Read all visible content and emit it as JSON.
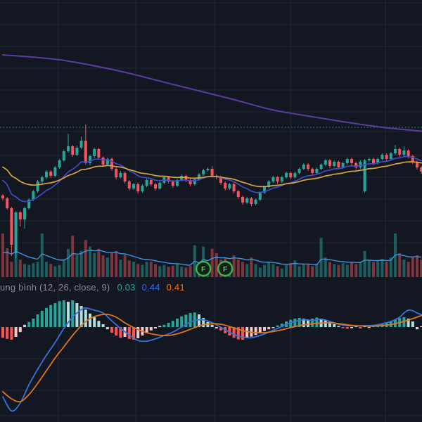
{
  "indicator_label": {
    "name": "ung bình (12, 26, close, 9)",
    "hist_value": "0.03",
    "macd_value": "0.44",
    "signal_value": "0.41"
  },
  "event_markers": [
    {
      "label": "F",
      "candle_index": 46
    },
    {
      "label": "F",
      "candle_index": 51
    }
  ],
  "colors": {
    "background": "#131722",
    "grid": "rgba(54,60,78,0.45)",
    "candle_up": "#26a69a",
    "candle_down": "#f4555f",
    "volume_up": "rgba(38,166,154,0.5)",
    "volume_down": "rgba(244,85,95,0.48)",
    "ma_fast": "#3e4cc7",
    "ma_slow": "#d9a441",
    "ma_long": "#5a3e9e",
    "volume_ma": "#3d94dc",
    "macd_line": "#3674d9",
    "macd_signal": "#e0751f",
    "hist_up": "#26a69a",
    "hist_up_fade": "#b2dfdb",
    "hist_down": "#ff5252",
    "hist_down_fade": "#f8c3c7",
    "dotted_baseline": "#2d8077",
    "marker_ring": "#3cb54a",
    "marker_glyph": "#4fd35f",
    "marker_fill": "#13201a",
    "label_text": "#868b98"
  },
  "chart_data": {
    "type": "candlestick",
    "units": "relative (no price axis visible in crop)",
    "candles_ohlc": [
      [
        12.2,
        12.4,
        11.5,
        11.8
      ],
      [
        11.8,
        12.0,
        10.2,
        10.4
      ],
      [
        10.4,
        10.6,
        3.6,
        5.2
      ],
      [
        4.0,
        10.0,
        3.3,
        9.8
      ],
      [
        9.8,
        10.0,
        7.8,
        8.8
      ],
      [
        8.8,
        10.6,
        7.5,
        10.4
      ],
      [
        10.4,
        11.8,
        10.2,
        11.6
      ],
      [
        11.6,
        13.0,
        11.4,
        12.8
      ],
      [
        12.8,
        14.4,
        12.6,
        14.2
      ],
      [
        14.2,
        15.0,
        13.8,
        14.8
      ],
      [
        14.8,
        15.8,
        14.5,
        15.6
      ],
      [
        15.6,
        15.8,
        14.7,
        15.0
      ],
      [
        15.0,
        16.4,
        14.8,
        16.2
      ],
      [
        16.2,
        17.4,
        16.0,
        17.2
      ],
      [
        17.2,
        18.7,
        17.0,
        18.5
      ],
      [
        18.5,
        21.0,
        18.3,
        19.2
      ],
      [
        19.2,
        19.4,
        17.7,
        18.0
      ],
      [
        18.0,
        19.3,
        17.8,
        19.0
      ],
      [
        19.0,
        20.6,
        18.8,
        20.0
      ],
      [
        20.0,
        22.3,
        16.6,
        16.8
      ],
      [
        16.8,
        18.0,
        16.5,
        17.8
      ],
      [
        17.8,
        19.0,
        17.5,
        18.8
      ],
      [
        18.8,
        19.0,
        17.3,
        17.6
      ],
      [
        17.6,
        17.8,
        16.3,
        16.6
      ],
      [
        16.6,
        17.6,
        16.4,
        17.4
      ],
      [
        17.4,
        17.6,
        15.7,
        16.0
      ],
      [
        16.0,
        16.2,
        14.5,
        14.8
      ],
      [
        14.8,
        15.7,
        14.6,
        15.4
      ],
      [
        15.4,
        15.6,
        13.9,
        14.2
      ],
      [
        14.2,
        14.4,
        12.9,
        13.2
      ],
      [
        13.2,
        14.0,
        13.0,
        13.8
      ],
      [
        13.8,
        14.0,
        12.5,
        12.8
      ],
      [
        12.8,
        13.8,
        12.6,
        13.6
      ],
      [
        13.6,
        14.6,
        13.4,
        14.4
      ],
      [
        14.4,
        14.6,
        13.5,
        13.8
      ],
      [
        13.8,
        14.0,
        12.9,
        13.2
      ],
      [
        13.2,
        14.2,
        13.0,
        14.0
      ],
      [
        14.0,
        15.0,
        13.8,
        14.8
      ],
      [
        14.8,
        15.0,
        13.9,
        14.2
      ],
      [
        14.2,
        14.4,
        13.3,
        13.6
      ],
      [
        13.6,
        14.6,
        13.4,
        14.4
      ],
      [
        14.4,
        15.2,
        14.2,
        15.0
      ],
      [
        15.0,
        15.2,
        14.1,
        14.4
      ],
      [
        14.4,
        14.6,
        13.5,
        13.8
      ],
      [
        13.8,
        14.7,
        13.6,
        14.5
      ],
      [
        14.5,
        15.4,
        14.3,
        15.2
      ],
      [
        15.2,
        16.0,
        15.0,
        15.8
      ],
      [
        15.8,
        16.2,
        15.6,
        16.0
      ],
      [
        16.0,
        16.4,
        14.8,
        15.0
      ],
      [
        15.0,
        15.2,
        14.5,
        14.8
      ],
      [
        14.8,
        15.0,
        13.7,
        14.0
      ],
      [
        14.0,
        14.2,
        12.9,
        13.2
      ],
      [
        13.2,
        14.0,
        13.0,
        13.8
      ],
      [
        13.8,
        14.0,
        12.5,
        12.8
      ],
      [
        12.8,
        13.0,
        11.7,
        12.0
      ],
      [
        12.0,
        12.2,
        10.9,
        11.2
      ],
      [
        11.2,
        12.0,
        11.0,
        11.8
      ],
      [
        11.8,
        12.0,
        10.7,
        11.0
      ],
      [
        11.0,
        11.8,
        10.8,
        11.6
      ],
      [
        11.6,
        12.8,
        11.4,
        12.6
      ],
      [
        12.6,
        13.6,
        12.4,
        13.4
      ],
      [
        13.4,
        14.4,
        13.2,
        14.2
      ],
      [
        14.2,
        15.0,
        14.0,
        14.8
      ],
      [
        14.8,
        15.0,
        13.9,
        14.2
      ],
      [
        14.2,
        15.0,
        14.0,
        14.8
      ],
      [
        14.8,
        15.6,
        14.6,
        15.4
      ],
      [
        15.4,
        15.6,
        14.5,
        14.8
      ],
      [
        14.8,
        15.6,
        14.6,
        15.4
      ],
      [
        15.4,
        16.2,
        15.2,
        16.0
      ],
      [
        16.0,
        16.8,
        15.8,
        16.6
      ],
      [
        16.6,
        16.8,
        15.7,
        16.0
      ],
      [
        16.0,
        16.2,
        15.1,
        15.4
      ],
      [
        15.4,
        16.2,
        15.2,
        16.0
      ],
      [
        16.0,
        16.8,
        15.8,
        16.6
      ],
      [
        16.6,
        17.4,
        16.4,
        17.2
      ],
      [
        17.2,
        17.4,
        16.1,
        16.4
      ],
      [
        16.4,
        17.2,
        16.2,
        17.0
      ],
      [
        17.0,
        17.2,
        15.9,
        16.2
      ],
      [
        16.2,
        17.0,
        16.0,
        16.8
      ],
      [
        16.8,
        17.6,
        16.6,
        17.4
      ],
      [
        17.4,
        17.6,
        16.5,
        16.8
      ],
      [
        16.8,
        17.0,
        15.9,
        16.2
      ],
      [
        16.2,
        17.2,
        16.0,
        17.0
      ],
      [
        12.8,
        17.4,
        12.6,
        17.2
      ],
      [
        17.2,
        17.6,
        17.0,
        17.4
      ],
      [
        17.4,
        17.6,
        16.5,
        16.8
      ],
      [
        16.8,
        17.6,
        16.6,
        17.4
      ],
      [
        17.4,
        18.2,
        17.2,
        18.0
      ],
      [
        18.0,
        18.2,
        17.1,
        17.4
      ],
      [
        17.4,
        18.4,
        17.2,
        18.2
      ],
      [
        18.2,
        19.4,
        18.0,
        18.8
      ],
      [
        18.8,
        19.0,
        17.7,
        18.0
      ],
      [
        18.0,
        19.2,
        17.8,
        18.6
      ],
      [
        18.6,
        18.8,
        17.5,
        17.8
      ],
      [
        17.8,
        18.0,
        16.7,
        17.0
      ],
      [
        17.0,
        17.2,
        15.9,
        16.2
      ],
      [
        16.2,
        16.4,
        15.3,
        15.6
      ]
    ],
    "volume": [
      100,
      66,
      35,
      80,
      40,
      30,
      28,
      32,
      35,
      100,
      35,
      30,
      25,
      28,
      40,
      65,
      95,
      50,
      60,
      85,
      70,
      55,
      65,
      50,
      45,
      55,
      60,
      40,
      50,
      38,
      35,
      30,
      28,
      35,
      35,
      30,
      25,
      28,
      24,
      26,
      30,
      24,
      22,
      26,
      73,
      20,
      70,
      30,
      65,
      55,
      40,
      45,
      35,
      50,
      40,
      35,
      30,
      45,
      30,
      22,
      28,
      35,
      30,
      25,
      20,
      28,
      32,
      38,
      25,
      30,
      28,
      25,
      30,
      90,
      45,
      35,
      30,
      28,
      32,
      28,
      35,
      30,
      35,
      60,
      40,
      35,
      38,
      42,
      35,
      45,
      100,
      55,
      40,
      35,
      45,
      50,
      40
    ],
    "overlays": {
      "fast_ema": {
        "period": 12,
        "seed": 14.8
      },
      "slow_ema": {
        "period": 26,
        "seed": 16.6
      },
      "volume_ema": {
        "period": 10,
        "seed": 45
      },
      "long_ma_points": [
        [
          0,
          32.2
        ],
        [
          13,
          31.5
        ],
        [
          26,
          30.0
        ],
        [
          39,
          28.0
        ],
        [
          52,
          26.0
        ],
        [
          61,
          24.5
        ],
        [
          68,
          23.7
        ],
        [
          77,
          22.8
        ],
        [
          87,
          21.9
        ],
        [
          96,
          21.35
        ]
      ],
      "dotted_baseline_price": 21.9
    },
    "macd": {
      "params": "12, 26, close, 9",
      "histogram": [
        -0.38,
        -0.42,
        -0.45,
        -0.35,
        -0.18,
        0.08,
        0.18,
        0.3,
        0.45,
        0.58,
        0.68,
        0.78,
        0.85,
        0.92,
        0.95,
        0.9,
        0.95,
        0.85,
        0.75,
        0.62,
        0.48,
        0.35,
        0.22,
        0.1,
        -0.08,
        -0.2,
        -0.3,
        -0.38,
        -0.35,
        -0.42,
        -0.45,
        -0.4,
        -0.3,
        -0.22,
        -0.12,
        -0.05,
        0.04,
        0.08,
        0.15,
        0.22,
        0.3,
        0.38,
        0.44,
        0.5,
        0.52,
        0.45,
        0.32,
        0.18,
        0.08,
        -0.05,
        -0.12,
        -0.22,
        -0.3,
        -0.38,
        -0.44,
        -0.45,
        -0.4,
        -0.34,
        -0.28,
        -0.2,
        -0.14,
        -0.08,
        -0.04,
        0.06,
        0.12,
        0.2,
        0.26,
        0.3,
        0.33,
        0.3,
        0.26,
        0.3,
        0.34,
        0.3,
        0.24,
        0.18,
        0.1,
        0.04,
        -0.04,
        -0.06,
        -0.04,
        0.03,
        -0.05,
        0.04,
        -0.03,
        0.05,
        0.08,
        0.12,
        0.17,
        0.22,
        0.27,
        0.32,
        0.35,
        0.3,
        0.2,
        -0.08,
        0.03
      ],
      "line_points": [
        [
          0,
          -2.48
        ],
        [
          2,
          -2.98
        ],
        [
          4,
          -2.7
        ],
        [
          6,
          -2.05
        ],
        [
          8,
          -1.5
        ],
        [
          10,
          -1.0
        ],
        [
          12,
          -0.55
        ],
        [
          14,
          -0.05
        ],
        [
          16,
          0.35
        ],
        [
          18,
          0.62
        ],
        [
          19,
          0.68
        ],
        [
          21,
          0.6
        ],
        [
          23,
          0.5
        ],
        [
          25,
          0.22
        ],
        [
          27,
          -0.05
        ],
        [
          29,
          -0.28
        ],
        [
          31,
          -0.48
        ],
        [
          33,
          -0.5
        ],
        [
          35,
          -0.42
        ],
        [
          37,
          -0.3
        ],
        [
          39,
          -0.18
        ],
        [
          41,
          0.0
        ],
        [
          43,
          0.18
        ],
        [
          45,
          0.26
        ],
        [
          47,
          0.22
        ],
        [
          49,
          0.08
        ],
        [
          51,
          -0.1
        ],
        [
          53,
          -0.26
        ],
        [
          55,
          -0.36
        ],
        [
          57,
          -0.38
        ],
        [
          59,
          -0.3
        ],
        [
          61,
          -0.18
        ],
        [
          63,
          -0.05
        ],
        [
          65,
          0.1
        ],
        [
          67,
          0.2
        ],
        [
          69,
          0.26
        ],
        [
          71,
          0.24
        ],
        [
          73,
          0.28
        ],
        [
          75,
          0.2
        ],
        [
          77,
          0.1
        ],
        [
          79,
          0.05
        ],
        [
          81,
          0.04
        ],
        [
          83,
          0.05
        ],
        [
          85,
          0.06
        ],
        [
          87,
          0.12
        ],
        [
          89,
          0.2
        ],
        [
          91,
          0.35
        ],
        [
          92,
          0.5
        ],
        [
          93,
          0.6
        ],
        [
          94,
          0.58
        ],
        [
          95,
          0.5
        ],
        [
          96,
          0.44
        ]
      ],
      "signal_points": [
        [
          0,
          -2.3
        ],
        [
          2,
          -2.55
        ],
        [
          4,
          -2.65
        ],
        [
          6,
          -2.4
        ],
        [
          8,
          -2.0
        ],
        [
          10,
          -1.55
        ],
        [
          12,
          -1.1
        ],
        [
          14,
          -0.7
        ],
        [
          16,
          -0.3
        ],
        [
          18,
          0.05
        ],
        [
          20,
          0.3
        ],
        [
          22,
          0.42
        ],
        [
          24,
          0.45
        ],
        [
          26,
          0.35
        ],
        [
          28,
          0.15
        ],
        [
          30,
          -0.02
        ],
        [
          32,
          -0.15
        ],
        [
          34,
          -0.24
        ],
        [
          36,
          -0.29
        ],
        [
          38,
          -0.3
        ],
        [
          40,
          -0.24
        ],
        [
          42,
          -0.14
        ],
        [
          44,
          -0.02
        ],
        [
          46,
          0.08
        ],
        [
          48,
          0.12
        ],
        [
          50,
          0.1
        ],
        [
          52,
          0.02
        ],
        [
          54,
          -0.08
        ],
        [
          56,
          -0.16
        ],
        [
          58,
          -0.2
        ],
        [
          60,
          -0.2
        ],
        [
          62,
          -0.16
        ],
        [
          64,
          -0.1
        ],
        [
          66,
          -0.02
        ],
        [
          68,
          0.05
        ],
        [
          70,
          0.1
        ],
        [
          72,
          0.13
        ],
        [
          74,
          0.15
        ],
        [
          76,
          0.14
        ],
        [
          78,
          0.1
        ],
        [
          80,
          0.06
        ],
        [
          82,
          0.04
        ],
        [
          84,
          0.03
        ],
        [
          86,
          0.04
        ],
        [
          88,
          0.07
        ],
        [
          90,
          0.12
        ],
        [
          92,
          0.2
        ],
        [
          94,
          0.3
        ],
        [
          96,
          0.41
        ]
      ],
      "last_values": {
        "histogram": 0.03,
        "macd": 0.44,
        "signal": 0.41
      }
    }
  }
}
